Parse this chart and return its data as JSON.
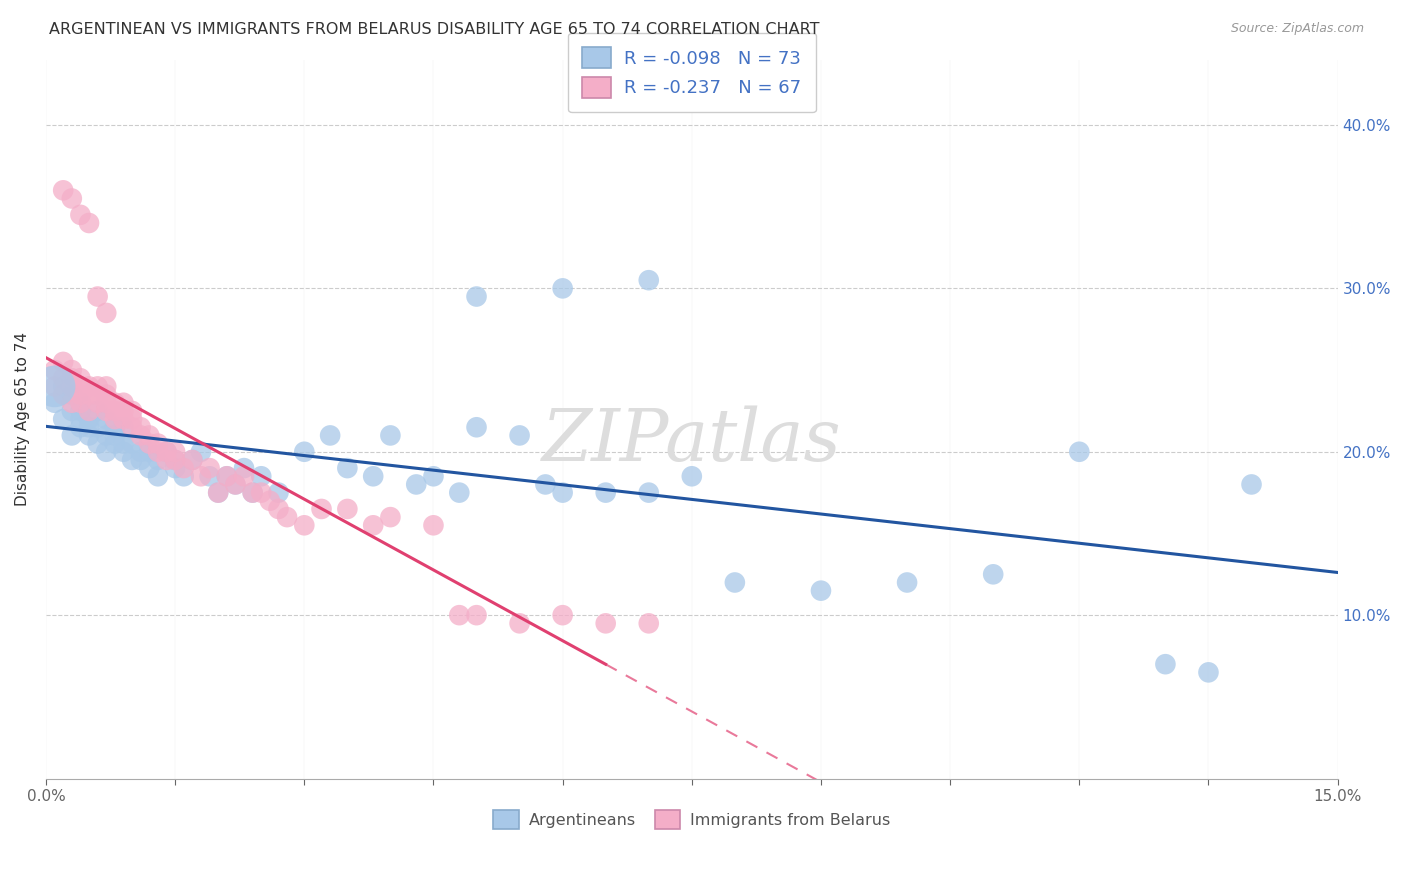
{
  "title": "ARGENTINEAN VS IMMIGRANTS FROM BELARUS DISABILITY AGE 65 TO 74 CORRELATION CHART",
  "source": "Source: ZipAtlas.com",
  "ylabel": "Disability Age 65 to 74",
  "xmin": 0.0,
  "xmax": 0.15,
  "ymin": 0.0,
  "ymax": 0.44,
  "blue_R": "-0.098",
  "blue_N": "73",
  "pink_R": "-0.237",
  "pink_N": "67",
  "blue_color": "#a8c8e8",
  "pink_color": "#f4aec8",
  "blue_line_color": "#2255a0",
  "pink_line_color": "#e04070",
  "watermark": "ZIPatlas",
  "blue_scatter_x": [
    0.001,
    0.002,
    0.002,
    0.003,
    0.003,
    0.003,
    0.004,
    0.004,
    0.004,
    0.004,
    0.005,
    0.005,
    0.005,
    0.006,
    0.006,
    0.006,
    0.007,
    0.007,
    0.007,
    0.008,
    0.008,
    0.008,
    0.009,
    0.009,
    0.009,
    0.01,
    0.01,
    0.011,
    0.011,
    0.012,
    0.012,
    0.013,
    0.013,
    0.014,
    0.015,
    0.015,
    0.016,
    0.017,
    0.018,
    0.019,
    0.02,
    0.021,
    0.022,
    0.023,
    0.024,
    0.025,
    0.027,
    0.03,
    0.033,
    0.035,
    0.038,
    0.04,
    0.043,
    0.045,
    0.048,
    0.05,
    0.055,
    0.058,
    0.06,
    0.065,
    0.07,
    0.075,
    0.08,
    0.09,
    0.1,
    0.11,
    0.12,
    0.13,
    0.135,
    0.14,
    0.05,
    0.06,
    0.07
  ],
  "blue_scatter_y": [
    0.23,
    0.22,
    0.24,
    0.21,
    0.225,
    0.235,
    0.215,
    0.225,
    0.22,
    0.23,
    0.21,
    0.22,
    0.215,
    0.225,
    0.205,
    0.215,
    0.2,
    0.21,
    0.22,
    0.215,
    0.205,
    0.21,
    0.2,
    0.205,
    0.215,
    0.195,
    0.205,
    0.195,
    0.2,
    0.19,
    0.2,
    0.195,
    0.185,
    0.2,
    0.19,
    0.195,
    0.185,
    0.195,
    0.2,
    0.185,
    0.175,
    0.185,
    0.18,
    0.19,
    0.175,
    0.185,
    0.175,
    0.2,
    0.21,
    0.19,
    0.185,
    0.21,
    0.18,
    0.185,
    0.175,
    0.215,
    0.21,
    0.18,
    0.175,
    0.175,
    0.175,
    0.185,
    0.12,
    0.115,
    0.12,
    0.125,
    0.2,
    0.07,
    0.065,
    0.18,
    0.295,
    0.3,
    0.305
  ],
  "pink_scatter_x": [
    0.001,
    0.001,
    0.002,
    0.002,
    0.002,
    0.003,
    0.003,
    0.003,
    0.003,
    0.004,
    0.004,
    0.004,
    0.004,
    0.005,
    0.005,
    0.005,
    0.006,
    0.006,
    0.006,
    0.007,
    0.007,
    0.007,
    0.007,
    0.008,
    0.008,
    0.008,
    0.009,
    0.009,
    0.009,
    0.01,
    0.01,
    0.01,
    0.011,
    0.011,
    0.012,
    0.012,
    0.013,
    0.013,
    0.014,
    0.014,
    0.015,
    0.015,
    0.016,
    0.017,
    0.018,
    0.019,
    0.02,
    0.021,
    0.022,
    0.023,
    0.024,
    0.025,
    0.026,
    0.027,
    0.028,
    0.03,
    0.032,
    0.035,
    0.038,
    0.04,
    0.045,
    0.048,
    0.05,
    0.055,
    0.06,
    0.065,
    0.07
  ],
  "pink_scatter_y": [
    0.24,
    0.25,
    0.235,
    0.245,
    0.255,
    0.23,
    0.24,
    0.245,
    0.25,
    0.235,
    0.24,
    0.245,
    0.23,
    0.225,
    0.235,
    0.24,
    0.23,
    0.235,
    0.24,
    0.225,
    0.23,
    0.235,
    0.24,
    0.22,
    0.225,
    0.23,
    0.22,
    0.225,
    0.23,
    0.215,
    0.22,
    0.225,
    0.21,
    0.215,
    0.205,
    0.21,
    0.2,
    0.205,
    0.195,
    0.2,
    0.195,
    0.2,
    0.19,
    0.195,
    0.185,
    0.19,
    0.175,
    0.185,
    0.18,
    0.185,
    0.175,
    0.175,
    0.17,
    0.165,
    0.16,
    0.155,
    0.165,
    0.165,
    0.155,
    0.16,
    0.155,
    0.1,
    0.1,
    0.095,
    0.1,
    0.095,
    0.095
  ],
  "pink_outlier_x": [
    0.002,
    0.003,
    0.004,
    0.005,
    0.006,
    0.007
  ],
  "pink_outlier_y": [
    0.36,
    0.355,
    0.345,
    0.34,
    0.295,
    0.285
  ]
}
